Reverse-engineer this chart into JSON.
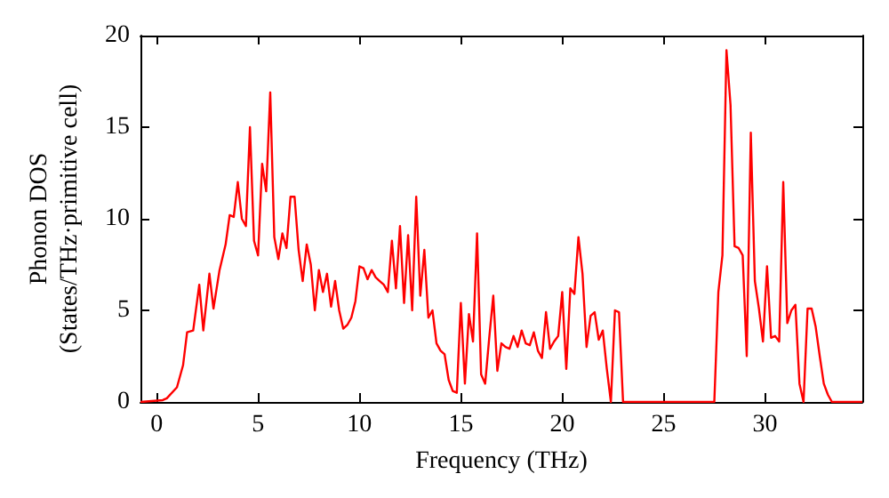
{
  "chart_data": {
    "type": "line",
    "xlabel": "Frequency (THz)",
    "ylabel": "Phonon DOS\n(States/THz·primitive cell)",
    "xlim": [
      -0.8,
      34.8
    ],
    "xticks": [
      0,
      5,
      10,
      15,
      20,
      25,
      30
    ],
    "ylim": [
      0,
      20
    ],
    "yticks": [
      0,
      5,
      10,
      15,
      20
    ],
    "grid": false,
    "marker": "none",
    "line_style": "solid",
    "series": [
      {
        "color": "#ff0000",
        "x": [
          -0.8,
          0.3,
          0.5,
          1,
          1.3,
          1.5,
          1.8,
          2.1,
          2.3,
          2.6,
          2.8,
          3.1,
          3.4,
          3.6,
          3.8,
          4.0,
          4.2,
          4.4,
          4.6,
          4.8,
          5.0,
          5.2,
          5.4,
          5.6,
          5.8,
          6.0,
          6.2,
          6.4,
          6.6,
          6.8,
          7.0,
          7.2,
          7.4,
          7.6,
          7.8,
          8.0,
          8.2,
          8.4,
          8.6,
          8.8,
          9.0,
          9.2,
          9.4,
          9.6,
          9.8,
          10.0,
          10.2,
          10.4,
          10.6,
          10.8,
          11,
          11.2,
          11.4,
          11.6,
          11.8,
          12,
          12.2,
          12.4,
          12.6,
          12.8,
          13,
          13.2,
          13.4,
          13.6,
          13.8,
          14,
          14.2,
          14.4,
          14.6,
          14.8,
          15,
          15.2,
          15.4,
          15.6,
          15.8,
          16,
          16.2,
          16.4,
          16.6,
          16.8,
          17,
          17.2,
          17.4,
          17.6,
          17.8,
          18,
          18.2,
          18.4,
          18.6,
          18.8,
          19,
          19.2,
          19.4,
          19.6,
          19.8,
          20,
          20.2,
          20.4,
          20.6,
          20.8,
          21,
          21.2,
          21.4,
          21.6,
          21.8,
          22,
          22.2,
          22.4,
          22.6,
          22.8,
          23,
          27.5,
          27.7,
          27.9,
          28.1,
          28.3,
          28.5,
          28.7,
          28.9,
          29.1,
          29.3,
          29.5,
          29.7,
          29.9,
          30.1,
          30.3,
          30.5,
          30.7,
          30.9,
          31.1,
          31.3,
          31.5,
          31.7,
          31.9,
          32.1,
          32.3,
          32.5,
          32.7,
          32.9,
          33.1,
          33.3,
          34.8
        ],
        "values": [
          0,
          0.1,
          0.2,
          0.8,
          2,
          3.8,
          3.9,
          6.4,
          3.9,
          7,
          5.1,
          7.2,
          8.6,
          10.2,
          10.1,
          12,
          10,
          9.6,
          15,
          8.8,
          8,
          13,
          11.5,
          16.9,
          9,
          7.8,
          9.2,
          8.4,
          11.2,
          11.2,
          8.3,
          6.6,
          8.6,
          7.5,
          5,
          7.2,
          6,
          7,
          5.2,
          6.6,
          5,
          4,
          4.2,
          4.6,
          5.5,
          7.4,
          7.3,
          6.7,
          7.2,
          6.8,
          6.6,
          6.4,
          6,
          8.8,
          6.2,
          9.6,
          5.4,
          9.1,
          5,
          11.2,
          5.8,
          8.3,
          4.6,
          5,
          3.2,
          2.8,
          2.6,
          1.2,
          0.6,
          0.5,
          5.4,
          1,
          4.8,
          3.3,
          9.2,
          1.5,
          1,
          3.5,
          5.8,
          1.7,
          3.2,
          3,
          2.9,
          3.6,
          3,
          3.9,
          3.2,
          3.1,
          3.8,
          2.8,
          2.4,
          4.9,
          2.9,
          3.3,
          3.6,
          6,
          1.8,
          6.2,
          5.9,
          9,
          7,
          3,
          4.7,
          4.9,
          3.4,
          3.9,
          1.8,
          0,
          5,
          4.9,
          0,
          0,
          6,
          8,
          19.2,
          16.2,
          8.5,
          8.4,
          8,
          2.5,
          14.7,
          6.6,
          5.1,
          3.3,
          7.4,
          3.5,
          3.6,
          3.3,
          12,
          4.3,
          5,
          5.3,
          1,
          0,
          5.1,
          5.1,
          4.1,
          2.5,
          1,
          0.4,
          0,
          0
        ]
      }
    ]
  }
}
